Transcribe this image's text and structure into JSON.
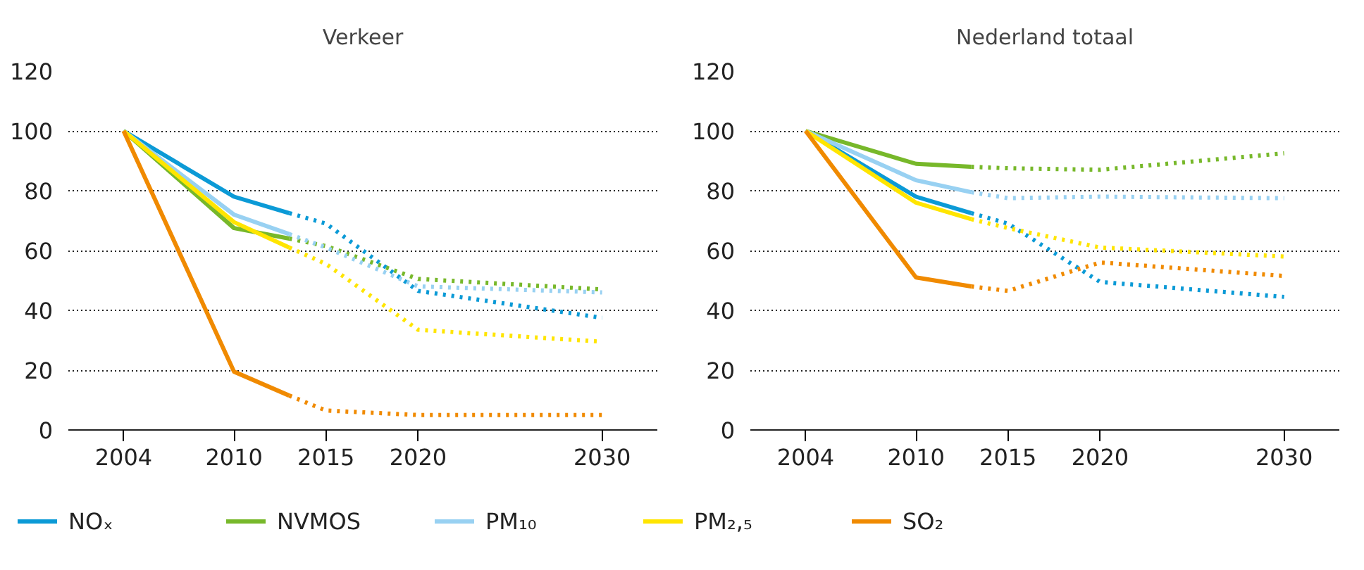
{
  "chart_data": [
    {
      "type": "line",
      "title": "Verkeer",
      "xlim": [
        2001,
        2033
      ],
      "xticks": [
        2004,
        2010,
        2015,
        2020,
        2030
      ],
      "ylim": [
        0,
        120
      ],
      "yticks": [
        0,
        20,
        40,
        60,
        80,
        100,
        120
      ],
      "grid": "y",
      "legend": "bottom",
      "series": [
        {
          "name": "NOₓ",
          "color": "#0b9ad6",
          "line_style": "solid",
          "x": [
            2004,
            2010,
            2013
          ],
          "values": [
            100,
            78,
            72.5
          ]
        },
        {
          "name": "NVMOS",
          "color": "#77b82a",
          "line_style": "solid",
          "x": [
            2004,
            2010,
            2013
          ],
          "values": [
            100,
            67.5,
            64
          ]
        },
        {
          "name": "PM₁₀",
          "color": "#98d1f2",
          "line_style": "solid",
          "x": [
            2004,
            2010,
            2013
          ],
          "values": [
            100,
            72,
            65.5
          ]
        },
        {
          "name": "PM₂,₅",
          "color": "#ffe500",
          "line_style": "solid",
          "x": [
            2004,
            2010,
            2013
          ],
          "values": [
            100,
            69.5,
            61
          ]
        },
        {
          "name": "SO₂",
          "color": "#f08a00",
          "line_style": "solid",
          "x": [
            2004,
            2010,
            2013
          ],
          "values": [
            100,
            19.5,
            11.5
          ]
        },
        {
          "color": "#0b9ad6",
          "line_style": "dotted",
          "x": [
            2013,
            2015,
            2020,
            2030
          ],
          "values": [
            72.5,
            69,
            46.5,
            37.5
          ]
        },
        {
          "color": "#77b82a",
          "line_style": "dotted",
          "x": [
            2013,
            2015,
            2020,
            2030
          ],
          "values": [
            64,
            61.5,
            50.5,
            47
          ]
        },
        {
          "color": "#98d1f2",
          "line_style": "dotted",
          "x": [
            2013,
            2015,
            2020,
            2030
          ],
          "values": [
            65.5,
            61,
            48,
            46
          ]
        },
        {
          "color": "#ffe500",
          "line_style": "dotted",
          "x": [
            2013,
            2015,
            2020,
            2030
          ],
          "values": [
            61,
            55.5,
            33.5,
            29.5
          ]
        },
        {
          "color": "#f08a00",
          "line_style": "dotted",
          "x": [
            2013,
            2015,
            2020,
            2030
          ],
          "values": [
            11.5,
            6.5,
            5,
            5
          ]
        }
      ]
    },
    {
      "type": "line",
      "title": "Nederland totaal",
      "xlim": [
        2001,
        2033
      ],
      "xticks": [
        2004,
        2010,
        2015,
        2020,
        2030
      ],
      "ylim": [
        0,
        120
      ],
      "yticks": [
        0,
        20,
        40,
        60,
        80,
        100,
        120
      ],
      "grid": "y",
      "series": [
        {
          "color": "#0b9ad6",
          "line_style": "solid",
          "x": [
            2004,
            2010,
            2013
          ],
          "values": [
            100,
            78,
            72.5
          ]
        },
        {
          "color": "#77b82a",
          "line_style": "solid",
          "x": [
            2004,
            2010,
            2013
          ],
          "values": [
            100,
            89,
            88
          ]
        },
        {
          "color": "#98d1f2",
          "line_style": "solid",
          "x": [
            2004,
            2010,
            2013
          ],
          "values": [
            100,
            83.5,
            79.5
          ]
        },
        {
          "color": "#ffe500",
          "line_style": "solid",
          "x": [
            2004,
            2010,
            2013
          ],
          "values": [
            100,
            76,
            70.5
          ]
        },
        {
          "color": "#f08a00",
          "line_style": "solid",
          "x": [
            2004,
            2010,
            2013
          ],
          "values": [
            100,
            51,
            48
          ]
        },
        {
          "color": "#0b9ad6",
          "line_style": "dotted",
          "x": [
            2013,
            2015,
            2020,
            2030
          ],
          "values": [
            72.5,
            69,
            49.5,
            44.5
          ]
        },
        {
          "color": "#77b82a",
          "line_style": "dotted",
          "x": [
            2013,
            2015,
            2020,
            2030
          ],
          "values": [
            88,
            87.5,
            87,
            92.5
          ]
        },
        {
          "color": "#98d1f2",
          "line_style": "dotted",
          "x": [
            2013,
            2015,
            2020,
            2030
          ],
          "values": [
            79.5,
            77.5,
            78,
            77.5
          ]
        },
        {
          "color": "#ffe500",
          "line_style": "dotted",
          "x": [
            2013,
            2015,
            2020,
            2030
          ],
          "values": [
            70.5,
            67.5,
            61,
            58
          ]
        },
        {
          "color": "#f08a00",
          "line_style": "dotted",
          "x": [
            2013,
            2015,
            2020,
            2030
          ],
          "values": [
            48,
            46.5,
            56,
            51.5
          ]
        }
      ]
    }
  ]
}
